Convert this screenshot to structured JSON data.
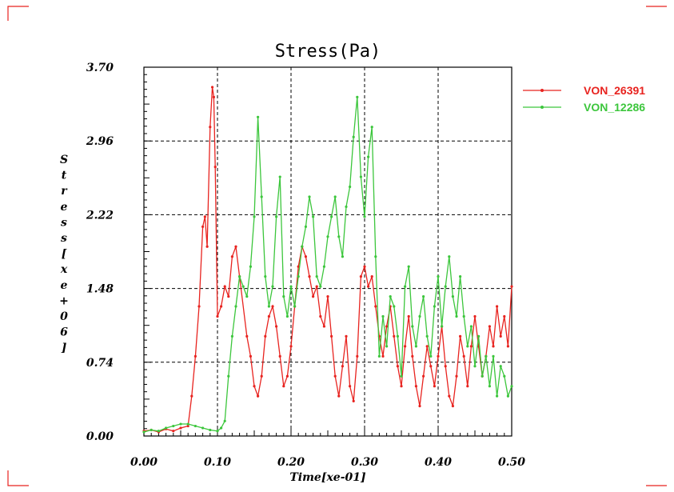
{
  "chart_data": {
    "type": "line",
    "title": "Stress(Pa)",
    "xlabel": "Time[xe-01]",
    "ylabel": "Stress[xe+06]",
    "xlim": [
      0.0,
      0.5
    ],
    "ylim": [
      0.0,
      3.7
    ],
    "x_ticks": [
      "0.00",
      "0.10",
      "0.20",
      "0.30",
      "0.40",
      "0.50"
    ],
    "y_ticks": [
      "0.00",
      "0.74",
      "1.48",
      "2.22",
      "2.96",
      "3.70"
    ],
    "grid": true,
    "legend_position": "top-right",
    "series": [
      {
        "name": "VON_26391",
        "color": "#e8231f",
        "x": [
          0.0,
          0.01,
          0.02,
          0.03,
          0.04,
          0.05,
          0.06,
          0.065,
          0.07,
          0.075,
          0.08,
          0.083,
          0.086,
          0.09,
          0.093,
          0.095,
          0.097,
          0.1,
          0.105,
          0.11,
          0.115,
          0.12,
          0.125,
          0.13,
          0.14,
          0.145,
          0.15,
          0.155,
          0.16,
          0.165,
          0.17,
          0.175,
          0.18,
          0.185,
          0.19,
          0.195,
          0.2,
          0.205,
          0.21,
          0.215,
          0.22,
          0.225,
          0.23,
          0.235,
          0.24,
          0.245,
          0.25,
          0.255,
          0.26,
          0.265,
          0.27,
          0.275,
          0.28,
          0.285,
          0.29,
          0.295,
          0.3,
          0.305,
          0.31,
          0.315,
          0.32,
          0.325,
          0.33,
          0.335,
          0.34,
          0.345,
          0.35,
          0.355,
          0.36,
          0.365,
          0.37,
          0.375,
          0.38,
          0.385,
          0.39,
          0.395,
          0.4,
          0.405,
          0.41,
          0.415,
          0.42,
          0.425,
          0.43,
          0.435,
          0.44,
          0.445,
          0.45,
          0.455,
          0.46,
          0.465,
          0.47,
          0.475,
          0.48,
          0.485,
          0.49,
          0.495,
          0.5
        ],
        "y": [
          0.05,
          0.06,
          0.04,
          0.07,
          0.05,
          0.08,
          0.1,
          0.4,
          0.8,
          1.3,
          2.1,
          2.2,
          1.9,
          3.1,
          3.5,
          3.4,
          2.7,
          1.2,
          1.3,
          1.5,
          1.4,
          1.8,
          1.9,
          1.6,
          1.0,
          0.8,
          0.5,
          0.4,
          0.6,
          1.0,
          1.2,
          1.3,
          1.1,
          0.8,
          0.5,
          0.6,
          0.9,
          1.3,
          1.7,
          1.9,
          1.8,
          1.6,
          1.4,
          1.5,
          1.2,
          1.1,
          1.4,
          1.0,
          0.6,
          0.4,
          0.7,
          1.0,
          0.5,
          0.35,
          0.8,
          1.6,
          1.7,
          1.5,
          1.6,
          1.3,
          1.0,
          0.8,
          1.1,
          1.3,
          1.0,
          0.7,
          0.5,
          0.9,
          1.2,
          0.8,
          0.5,
          0.3,
          0.6,
          0.9,
          0.7,
          0.5,
          0.8,
          1.1,
          0.7,
          0.4,
          0.3,
          0.6,
          1.0,
          0.8,
          0.5,
          0.9,
          1.2,
          0.9,
          0.6,
          0.8,
          1.1,
          0.9,
          1.3,
          1.0,
          1.2,
          0.9,
          1.5
        ]
      },
      {
        "name": "VON_12286",
        "color": "#3cc63c",
        "x": [
          0.0,
          0.01,
          0.02,
          0.03,
          0.04,
          0.05,
          0.06,
          0.07,
          0.08,
          0.09,
          0.1,
          0.105,
          0.11,
          0.115,
          0.12,
          0.125,
          0.13,
          0.135,
          0.14,
          0.145,
          0.15,
          0.155,
          0.16,
          0.165,
          0.17,
          0.175,
          0.18,
          0.185,
          0.19,
          0.195,
          0.2,
          0.205,
          0.21,
          0.215,
          0.22,
          0.225,
          0.23,
          0.235,
          0.24,
          0.245,
          0.25,
          0.255,
          0.26,
          0.265,
          0.27,
          0.275,
          0.28,
          0.285,
          0.29,
          0.295,
          0.3,
          0.305,
          0.31,
          0.315,
          0.32,
          0.325,
          0.33,
          0.335,
          0.34,
          0.345,
          0.35,
          0.355,
          0.36,
          0.365,
          0.37,
          0.375,
          0.38,
          0.385,
          0.39,
          0.395,
          0.4,
          0.405,
          0.41,
          0.415,
          0.42,
          0.425,
          0.43,
          0.435,
          0.44,
          0.445,
          0.45,
          0.455,
          0.46,
          0.465,
          0.47,
          0.475,
          0.48,
          0.485,
          0.49,
          0.495,
          0.5
        ],
        "y": [
          0.04,
          0.06,
          0.05,
          0.08,
          0.1,
          0.12,
          0.12,
          0.1,
          0.08,
          0.06,
          0.05,
          0.08,
          0.15,
          0.6,
          1.0,
          1.3,
          1.6,
          1.5,
          1.4,
          1.7,
          2.2,
          3.2,
          2.4,
          1.6,
          1.3,
          1.5,
          2.2,
          2.6,
          1.4,
          1.2,
          1.5,
          1.3,
          1.6,
          1.9,
          2.1,
          2.4,
          2.2,
          1.6,
          1.5,
          1.7,
          2.0,
          2.2,
          2.4,
          2.0,
          1.8,
          2.3,
          2.5,
          3.0,
          3.4,
          2.6,
          2.2,
          2.8,
          3.1,
          1.8,
          0.8,
          1.2,
          0.9,
          1.4,
          1.3,
          1.0,
          0.6,
          1.5,
          1.7,
          1.1,
          0.9,
          1.2,
          1.4,
          1.0,
          0.8,
          1.3,
          1.6,
          1.1,
          1.5,
          1.8,
          1.4,
          1.2,
          1.6,
          1.2,
          0.9,
          1.1,
          0.7,
          1.0,
          0.6,
          0.8,
          0.5,
          0.8,
          0.4,
          0.7,
          0.6,
          0.4,
          0.5
        ]
      }
    ]
  }
}
